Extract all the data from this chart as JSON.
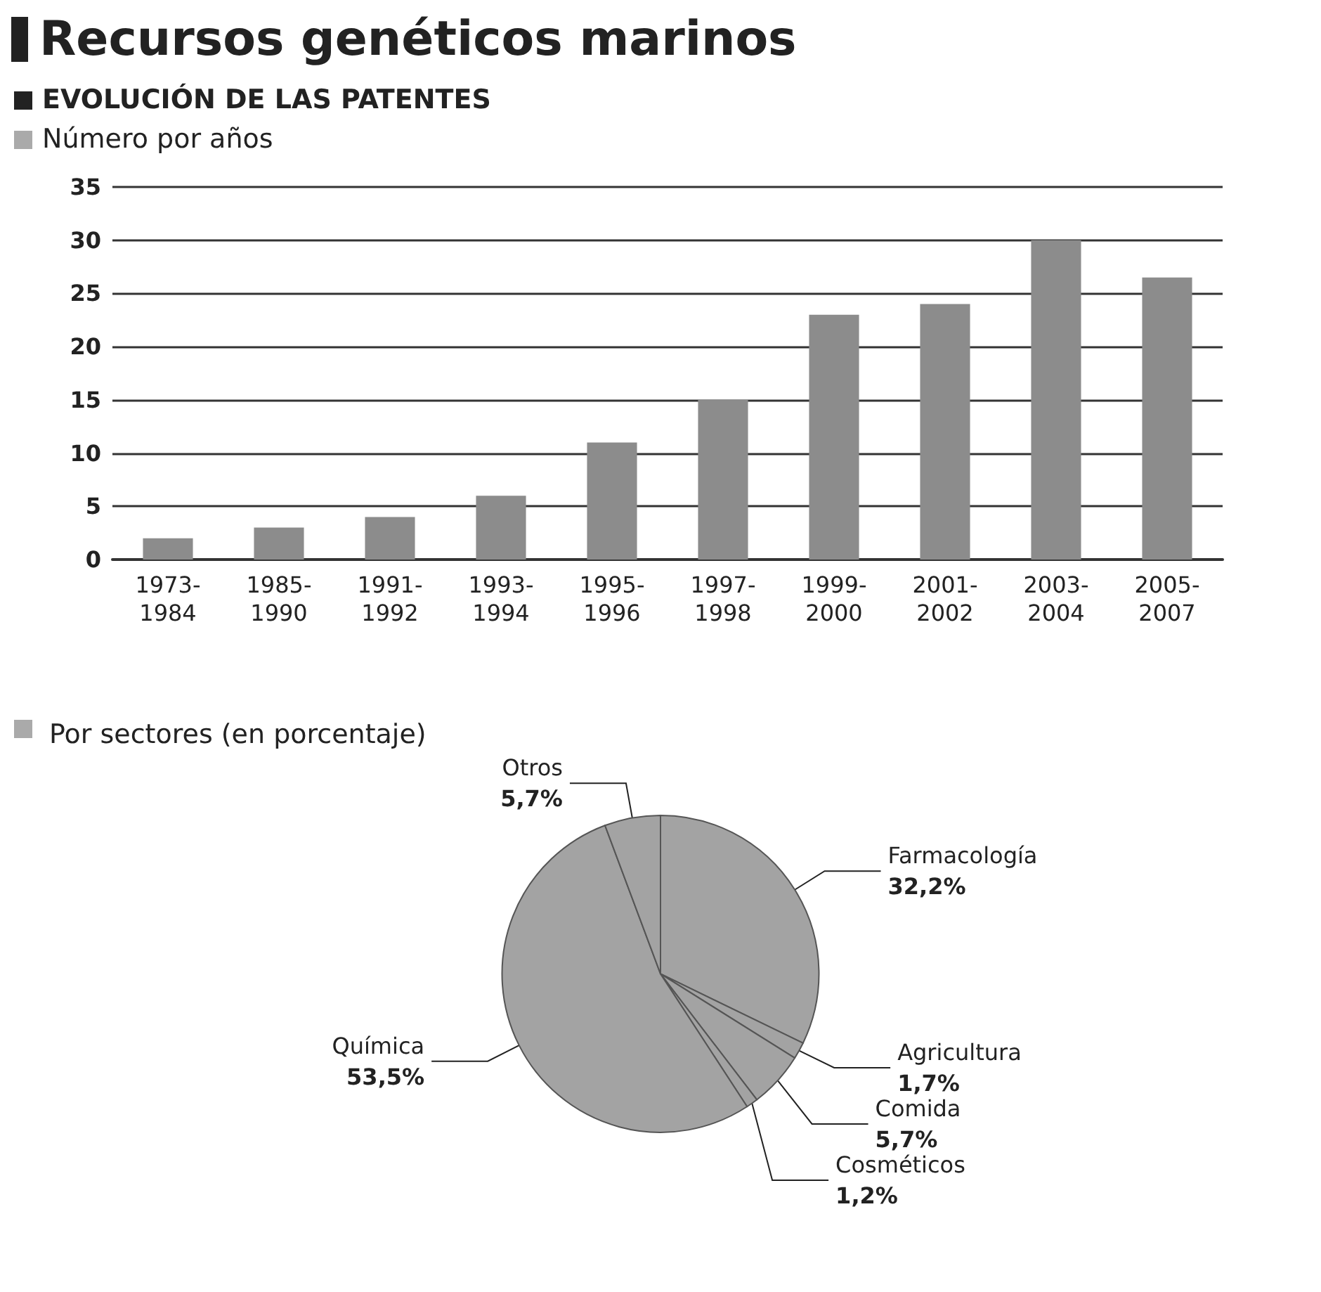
{
  "chart_data": [
    {
      "type": "bar",
      "title": "Recursos genéticos marinos",
      "subtitle": "EVOLUCIÓN DE LAS PATENTES",
      "ylabel": "Número por años",
      "categories": [
        "1973-1984",
        "1985-1990",
        "1991-1992",
        "1993-1994",
        "1995-1996",
        "1997-1998",
        "1999-2000",
        "2001-2002",
        "2003-2004",
        "2005-2007"
      ],
      "values": [
        2,
        3,
        4,
        6,
        11,
        15,
        23,
        24,
        30,
        26.5
      ],
      "color": "#8c8c8c",
      "ylim": [
        0,
        35
      ],
      "yticks": [
        0,
        5,
        10,
        15,
        20,
        25,
        30,
        35
      ],
      "grid": "y"
    },
    {
      "type": "pie",
      "title": "Por sectores (en porcentaje)",
      "categories": [
        "Farmacología",
        "Agricultura",
        "Comida",
        "Cosméticos",
        "Química",
        "Otros"
      ],
      "values": [
        32.2,
        1.7,
        5.7,
        1.2,
        53.5,
        5.7
      ],
      "colors": [
        "#a3a3a3",
        "#a3a3a3",
        "#a3a3a3",
        "#a3a3a3",
        "#a3a3a3",
        "#a3a3a3"
      ],
      "value_labels": [
        "32,2%",
        "1,7%",
        "5,7%",
        "1,2%",
        "53,5%",
        "5,7%"
      ]
    }
  ]
}
